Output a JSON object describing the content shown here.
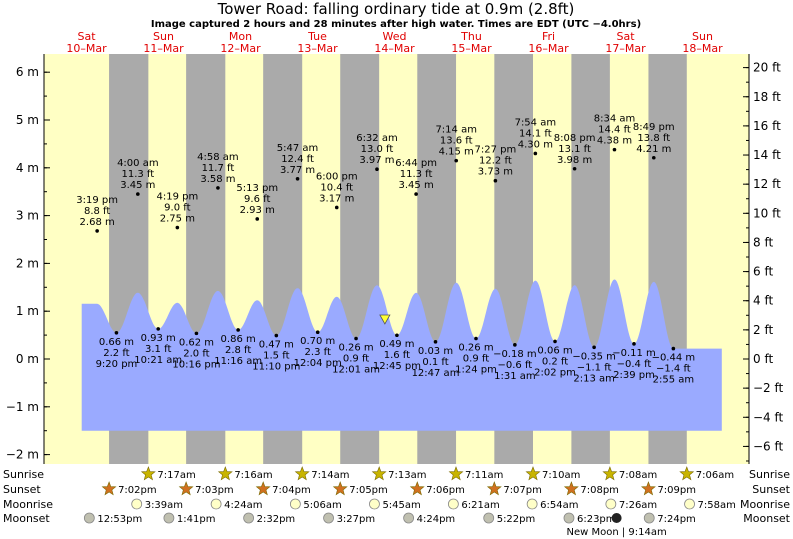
{
  "title": "Tower Road: falling  ordinary tide at 0.9m (2.8ft)",
  "subtitle": "Image captured 2 hours and 28 minutes after high water. Times are EDT (UTC −4.0hrs)",
  "colors": {
    "day_bg": "#ffffc4",
    "night_bg": "#aaaaaa",
    "water": "#9aaaff",
    "day_label": "#e00000",
    "marker": "#ffff33",
    "sun_star": "#c8b400",
    "sun_star_set": "#d07020"
  },
  "days": [
    {
      "dow": "Sat",
      "date": "10–Mar"
    },
    {
      "dow": "Sun",
      "date": "11–Mar"
    },
    {
      "dow": "Mon",
      "date": "12–Mar"
    },
    {
      "dow": "Tue",
      "date": "13–Mar"
    },
    {
      "dow": "Wed",
      "date": "14–Mar"
    },
    {
      "dow": "Thu",
      "date": "15–Mar"
    },
    {
      "dow": "Fri",
      "date": "16–Mar"
    },
    {
      "dow": "Sat",
      "date": "17–Mar"
    },
    {
      "dow": "Sun",
      "date": "18–Mar"
    }
  ],
  "chart_data": {
    "type": "area",
    "x_unit": "hours from 10-Mar 00:00 EDT",
    "y_left": {
      "unit": "m",
      "ticks": [
        "−2 m",
        "−1 m",
        "0 m",
        "1 m",
        "2 m",
        "3 m",
        "4 m",
        "5 m",
        "6 m"
      ],
      "ylim": [
        -2.2,
        6.4
      ]
    },
    "y_right": {
      "unit": "ft",
      "ticks": [
        "−6 ft",
        "−4 ft",
        "−2 ft",
        "0 ft",
        "2 ft",
        "4 ft",
        "6 ft",
        "8 ft",
        "10 ft",
        "12 ft",
        "14 ft",
        "16 ft",
        "18 ft",
        "20 ft"
      ]
    },
    "capture_marker_m": 0.9,
    "nights": [
      {
        "start": "10-Mar 19:02",
        "end": "11-Mar 07:17"
      },
      {
        "start": "11-Mar 19:03",
        "end": "12-Mar 07:16"
      },
      {
        "start": "12-Mar 19:04",
        "end": "13-Mar 07:14"
      },
      {
        "start": "13-Mar 19:05",
        "end": "14-Mar 07:13"
      },
      {
        "start": "14-Mar 19:06",
        "end": "15-Mar 07:11"
      },
      {
        "start": "15-Mar 19:07",
        "end": "16-Mar 07:10"
      },
      {
        "start": "16-Mar 19:08",
        "end": "17-Mar 07:08"
      },
      {
        "start": "17-Mar 19:09",
        "end": "18-Mar 07:06"
      }
    ],
    "tides": [
      {
        "day": 0,
        "time": "3:19 pm",
        "ft": "8.8 ft",
        "m": "2.68 m",
        "value": 2.68,
        "type": "high"
      },
      {
        "day": 0,
        "time": "9:20 pm",
        "ft": "2.2 ft",
        "m": "0.66 m",
        "value": 0.66,
        "type": "low"
      },
      {
        "day": 1,
        "time": "4:00 am",
        "ft": "11.3 ft",
        "m": "3.45 m",
        "value": 3.45,
        "type": "high"
      },
      {
        "day": 1,
        "time": "10:21 am",
        "ft": "3.1 ft",
        "m": "0.93 m",
        "value": 0.93,
        "type": "low"
      },
      {
        "day": 1,
        "time": "4:19 pm",
        "ft": "9.0 ft",
        "m": "2.75 m",
        "value": 2.75,
        "type": "high"
      },
      {
        "day": 1,
        "time": "10:16 pm",
        "ft": "2.0 ft",
        "m": "0.62 m",
        "value": 0.62,
        "type": "low"
      },
      {
        "day": 2,
        "time": "4:58 am",
        "ft": "11.7 ft",
        "m": "3.58 m",
        "value": 3.58,
        "type": "high"
      },
      {
        "day": 2,
        "time": "11:16 am",
        "ft": "2.8 ft",
        "m": "0.86 m",
        "value": 0.86,
        "type": "low"
      },
      {
        "day": 2,
        "time": "5:13 pm",
        "ft": "9.6 ft",
        "m": "2.93 m",
        "value": 2.93,
        "type": "high"
      },
      {
        "day": 2,
        "time": "11:10 pm",
        "ft": "1.5 ft",
        "m": "0.47 m",
        "value": 0.47,
        "type": "low"
      },
      {
        "day": 3,
        "time": "5:47 am",
        "ft": "12.4 ft",
        "m": "3.77 m",
        "value": 3.77,
        "type": "high"
      },
      {
        "day": 3,
        "time": "12:04 pm",
        "ft": "2.3 ft",
        "m": "0.70 m",
        "value": 0.7,
        "type": "low"
      },
      {
        "day": 3,
        "time": "6:00 pm",
        "ft": "10.4 ft",
        "m": "3.17 m",
        "value": 3.17,
        "type": "high"
      },
      {
        "day": 4,
        "time": "12:01 am",
        "ft": "0.9 ft",
        "m": "0.26 m",
        "value": 0.26,
        "type": "low"
      },
      {
        "day": 4,
        "time": "6:32 am",
        "ft": "13.0 ft",
        "m": "3.97 m",
        "value": 3.97,
        "type": "high"
      },
      {
        "day": 4,
        "time": "12:45 pm",
        "ft": "1.6 ft",
        "m": "0.49 m",
        "value": 0.49,
        "type": "low"
      },
      {
        "day": 4,
        "time": "6:44 pm",
        "ft": "11.3 ft",
        "m": "3.45 m",
        "value": 3.45,
        "type": "high"
      },
      {
        "day": 5,
        "time": "12:47 am",
        "ft": "0.1 ft",
        "m": "0.03 m",
        "value": 0.03,
        "type": "low"
      },
      {
        "day": 5,
        "time": "7:14 am",
        "ft": "13.6 ft",
        "m": "4.15 m",
        "value": 4.15,
        "type": "high"
      },
      {
        "day": 5,
        "time": "1:24 pm",
        "ft": "0.9 ft",
        "m": "0.26 m",
        "value": 0.26,
        "type": "low"
      },
      {
        "day": 5,
        "time": "7:27 pm",
        "ft": "12.2 ft",
        "m": "3.73 m",
        "value": 3.73,
        "type": "high"
      },
      {
        "day": 6,
        "time": "1:31 am",
        "ft": "−0.6 ft",
        "m": "−0.18 m",
        "value": -0.18,
        "type": "low"
      },
      {
        "day": 6,
        "time": "7:54 am",
        "ft": "14.1 ft",
        "m": "4.30 m",
        "value": 4.3,
        "type": "high"
      },
      {
        "day": 6,
        "time": "2:02 pm",
        "ft": "0.2 ft",
        "m": "0.06 m",
        "value": 0.06,
        "type": "low"
      },
      {
        "day": 6,
        "time": "8:08 pm",
        "ft": "13.1 ft",
        "m": "3.98 m",
        "value": 3.98,
        "type": "high"
      },
      {
        "day": 7,
        "time": "2:13 am",
        "ft": "−1.1 ft",
        "m": "−0.35 m",
        "value": -0.35,
        "type": "low"
      },
      {
        "day": 7,
        "time": "8:34 am",
        "ft": "14.4 ft",
        "m": "4.38 m",
        "value": 4.38,
        "type": "high"
      },
      {
        "day": 7,
        "time": "2:39 pm",
        "ft": "−0.4 ft",
        "m": "−0.11 m",
        "value": -0.11,
        "type": "low"
      },
      {
        "day": 7,
        "time": "8:49 pm",
        "ft": "13.8 ft",
        "m": "4.21 m",
        "value": 4.21,
        "type": "high"
      },
      {
        "day": 8,
        "time": "2:55 am",
        "ft": "−1.4 ft",
        "m": "−0.44 m",
        "value": -0.44,
        "type": "low"
      }
    ]
  },
  "bottom": {
    "labels": [
      "Sunrise",
      "Sunset",
      "Moonrise",
      "Moonset"
    ],
    "sunrise": [
      {
        "day": 1,
        "time": "7:17am"
      },
      {
        "day": 2,
        "time": "7:16am"
      },
      {
        "day": 3,
        "time": "7:14am"
      },
      {
        "day": 4,
        "time": "7:13am"
      },
      {
        "day": 5,
        "time": "7:11am"
      },
      {
        "day": 6,
        "time": "7:10am"
      },
      {
        "day": 7,
        "time": "7:08am"
      },
      {
        "day": 8,
        "time": "7:06am"
      }
    ],
    "sunset": [
      {
        "day": 0,
        "time": "7:02pm"
      },
      {
        "day": 1,
        "time": "7:03pm"
      },
      {
        "day": 2,
        "time": "7:04pm"
      },
      {
        "day": 3,
        "time": "7:05pm"
      },
      {
        "day": 4,
        "time": "7:06pm"
      },
      {
        "day": 5,
        "time": "7:07pm"
      },
      {
        "day": 6,
        "time": "7:08pm"
      },
      {
        "day": 7,
        "time": "7:09pm"
      }
    ],
    "moonrise": [
      {
        "day": 1,
        "time": "3:39am"
      },
      {
        "day": 2,
        "time": "4:24am"
      },
      {
        "day": 3,
        "time": "5:06am"
      },
      {
        "day": 4,
        "time": "5:45am"
      },
      {
        "day": 5,
        "time": "6:21am"
      },
      {
        "day": 6,
        "time": "6:54am"
      },
      {
        "day": 7,
        "time": "7:26am"
      },
      {
        "day": 8,
        "time": "7:58am"
      }
    ],
    "moonset": [
      {
        "day": 0,
        "time": "12:53pm"
      },
      {
        "day": 1,
        "time": "1:41pm"
      },
      {
        "day": 2,
        "time": "2:32pm"
      },
      {
        "day": 3,
        "time": "3:27pm"
      },
      {
        "day": 4,
        "time": "4:24pm"
      },
      {
        "day": 5,
        "time": "5:22pm"
      },
      {
        "day": 6,
        "time": "6:23pm"
      },
      {
        "day": 7,
        "time": "7:24pm"
      }
    ],
    "moon_phase": "New Moon | 9:14am"
  }
}
